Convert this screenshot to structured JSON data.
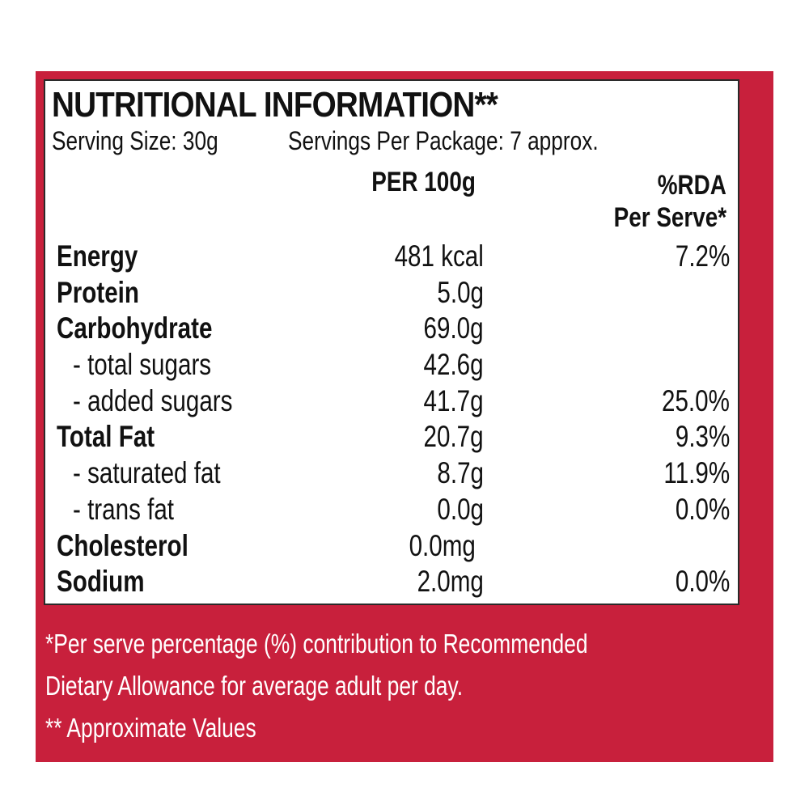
{
  "label": {
    "title": "NUTRITIONAL INFORMATION**",
    "serving_size": "Serving Size: 30g",
    "servings_per_package": "Servings Per Package: 7 approx.",
    "col_per100": "PER 100g",
    "col_rda_line1": "%RDA",
    "col_rda_line2": "Per Serve*",
    "rows": [
      {
        "name": "Energy",
        "value": "481 kcal",
        "rda": "7.2%"
      },
      {
        "name": "Protein",
        "value": "5.0g",
        "rda": ""
      },
      {
        "name": "Carbohydrate",
        "value": "69.0g",
        "rda": ""
      },
      {
        "name": "- total sugars",
        "value": "42.6g",
        "rda": ""
      },
      {
        "name": "- added sugars",
        "value": "41.7g",
        "rda": "25.0%"
      },
      {
        "name": "Total Fat",
        "value": "20.7g",
        "rda": "9.3%"
      },
      {
        "name": "- saturated fat",
        "value": "8.7g",
        "rda": "11.9%"
      },
      {
        "name": "- trans fat",
        "value": "0.0g",
        "rda": "0.0%"
      },
      {
        "name": "Cholesterol",
        "value": "0.0mg",
        "rda": ""
      },
      {
        "name": "Sodium",
        "value": "2.0mg",
        "rda": "0.0%"
      }
    ],
    "footnote_line1": "*Per serve percentage (%) contribution to Recommended",
    "footnote_line2": "Dietary Allowance for average adult per day.",
    "footnote_line3": "** Approximate Values"
  },
  "colors": {
    "background_red": "#c8203c",
    "panel_white": "#ffffff",
    "text_dark": "#111111"
  }
}
